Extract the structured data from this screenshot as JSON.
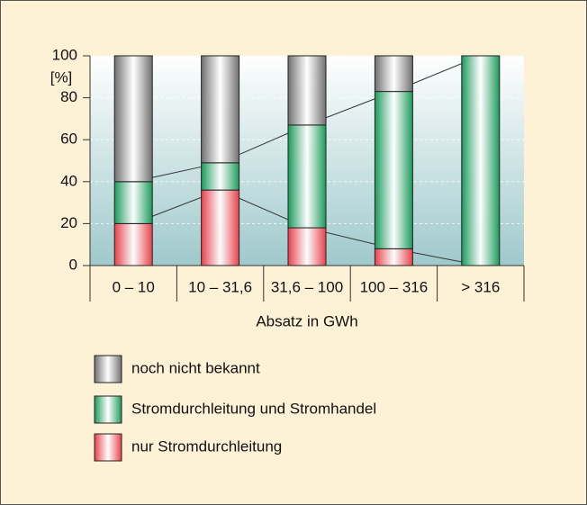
{
  "chart_data": {
    "type": "stacked_bar",
    "y_unit_label": "[%]",
    "x_label": "Absatz in GWh",
    "categories": [
      "0 – 10",
      "10 – 31,6",
      "31,6 – 100",
      "100 – 316",
      "> 316"
    ],
    "series": [
      {
        "name": "nur Stromdurchleitung",
        "color": "#e8404a",
        "values": [
          20,
          36,
          18,
          8,
          0
        ]
      },
      {
        "name": "Stromdurchleitung und Stromhandel",
        "color": "#1a9a5a",
        "values": [
          20,
          13,
          49,
          75,
          100
        ]
      },
      {
        "name": "noch nicht bekannt",
        "color": "#6f6f6f",
        "values": [
          60,
          51,
          33,
          17,
          0
        ]
      }
    ],
    "ylim": [
      0,
      100
    ],
    "yticks": [
      0,
      20,
      40,
      60,
      80,
      100
    ],
    "grid": true
  }
}
